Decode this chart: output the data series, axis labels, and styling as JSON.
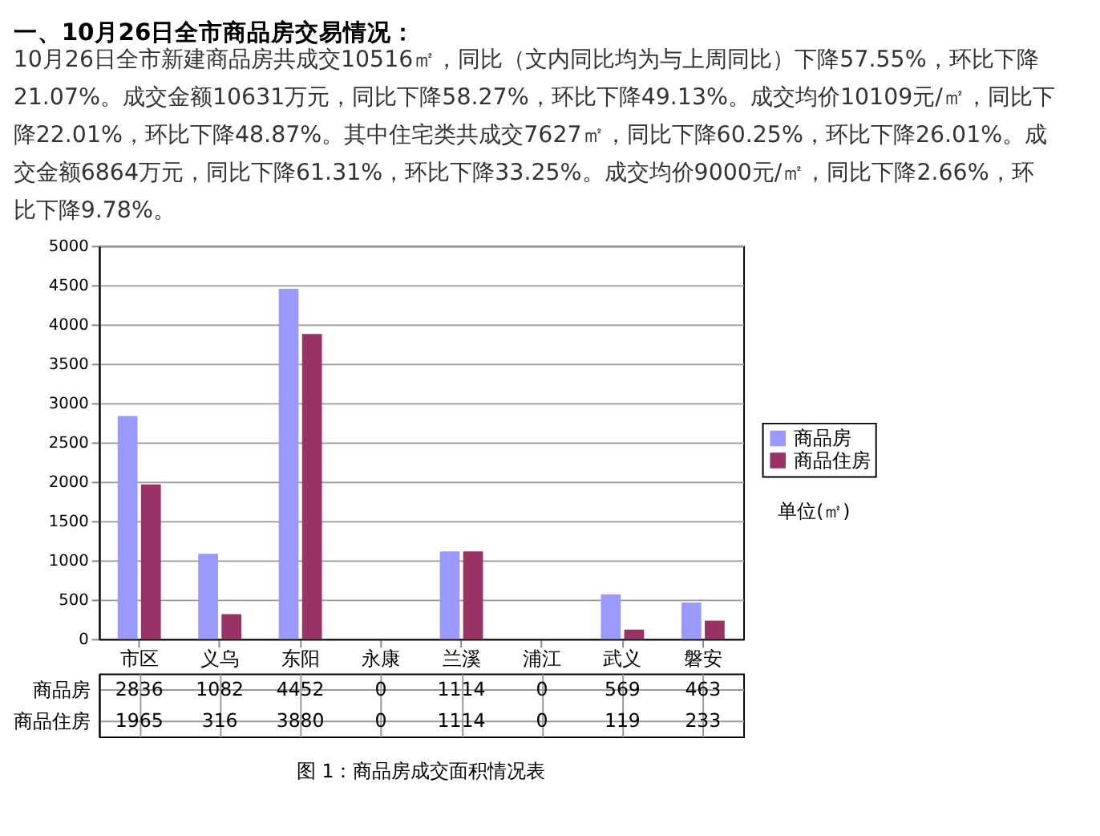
{
  "chart_data": {
    "type": "bar",
    "title": "一、10月26日全市商品房交易情况：",
    "subtitle": "10月26日全市新建商品房共成交10516㎡，同比（文内同比均为与上周同比）下降57.55%，环比下降21.07%。成交金额10631万元，同比下降58.27%，环比下降49.13%。成交均价10109元/㎡，同比下降22.01%，环比下降48.87%。其中住宅类共成交7627㎡，同比下降60.25%，环比下降26.01%。成交金额6864万元，同比下降61.31%，环比下降33.25%。成交均价9000元/㎡，同比下降2.66%，环比下降9.78%。",
    "categories": [
      "市区",
      "义乌",
      "东阳",
      "永康",
      "兰溪",
      "浦江",
      "武义",
      "磐安"
    ],
    "series": [
      {
        "name": "商品房",
        "color": "#9999ff",
        "values": [
          2836,
          1082,
          4452,
          0,
          1114,
          0,
          569,
          463
        ]
      },
      {
        "name": "商品住房",
        "color": "#993366",
        "values": [
          1965,
          316,
          3880,
          0,
          1114,
          0,
          119,
          233
        ]
      }
    ],
    "ylim": [
      0,
      5000
    ],
    "yticks": [
      0,
      500,
      1000,
      1500,
      2000,
      2500,
      3000,
      3500,
      4000,
      4500,
      5000
    ],
    "grid": "y",
    "legend": "right",
    "data_labels": true,
    "annotations": [
      "单位(㎡)",
      "图 1：商品房成交面积情况表"
    ]
  }
}
